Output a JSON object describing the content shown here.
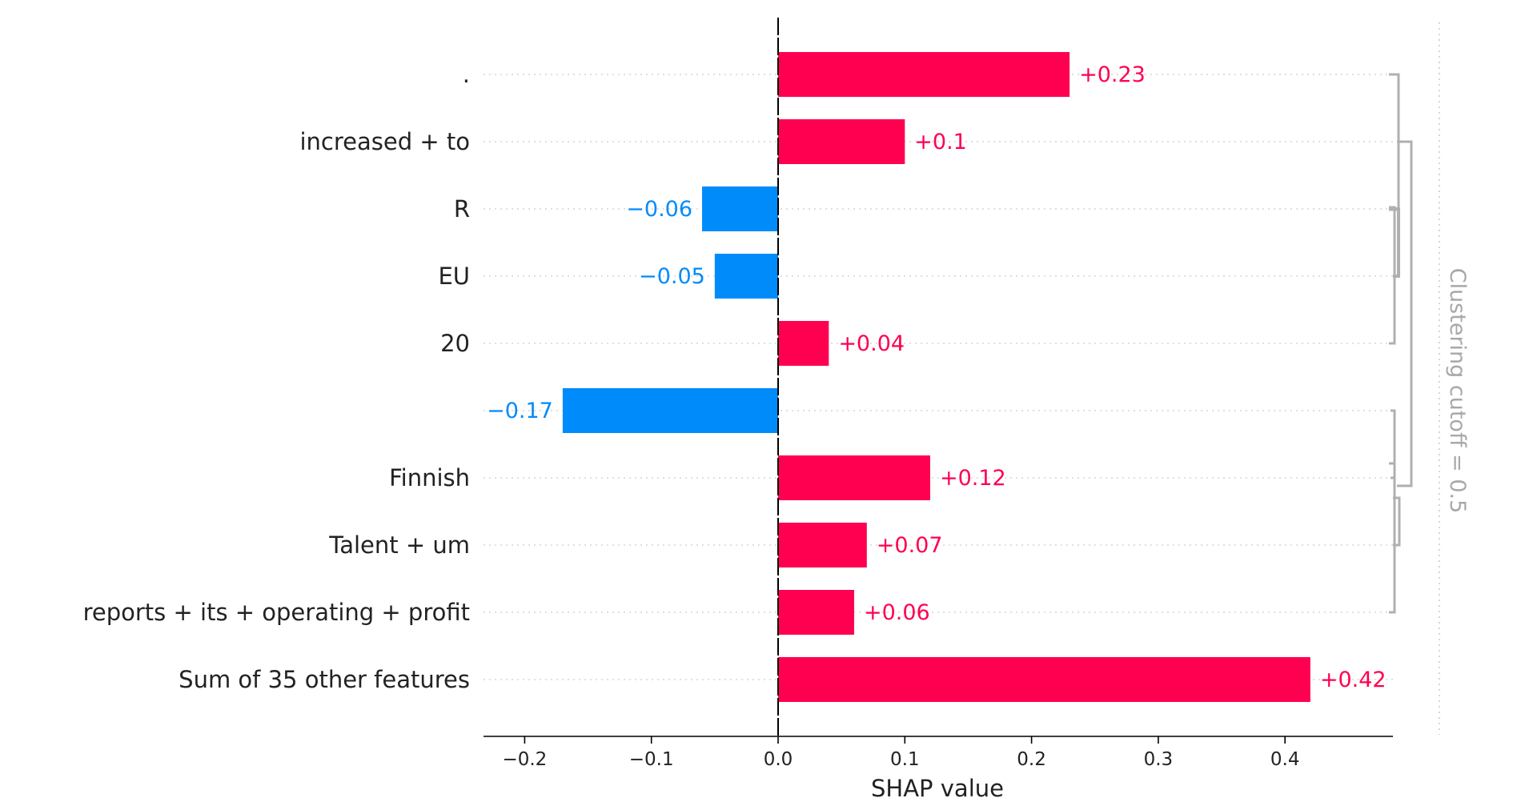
{
  "chart_data": {
    "type": "bar",
    "orientation": "horizontal",
    "categories": [
      ".",
      "increased + to",
      "R",
      "EU",
      "20",
      "",
      "Finnish",
      "Talent + um",
      "reports + its + operating + profit",
      "Sum of 35 other features"
    ],
    "values": [
      0.23,
      0.1,
      -0.06,
      -0.05,
      0.04,
      -0.17,
      0.12,
      0.07,
      0.06,
      0.42
    ],
    "value_labels": [
      "+0.23",
      "+0.1",
      "−0.06",
      "−0.05",
      "+0.04",
      "−0.17",
      "+0.12",
      "+0.07",
      "+0.06",
      "+0.42"
    ],
    "xlabel": "SHAP value",
    "xlim": [
      -0.23,
      0.485
    ],
    "xticks": [
      -0.2,
      -0.1,
      0.0,
      0.1,
      0.2,
      0.3,
      0.4
    ],
    "xtick_labels": [
      "−0.2",
      "−0.1",
      "0.0",
      "0.1",
      "0.2",
      "0.3",
      "0.4"
    ],
    "grid": "horizontal dotted",
    "colors": {
      "positive": "#ff0051",
      "negative": "#008bfb",
      "dendrogram": "#b0b0b0",
      "cutoff_text": "#a8a8a8"
    },
    "clustering_cutoff_label": "Clustering cutoff = 0.5"
  }
}
